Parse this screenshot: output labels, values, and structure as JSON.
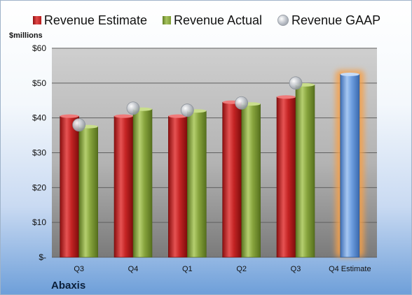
{
  "chart_data": {
    "type": "bar",
    "ylabel": "$millions",
    "ylim": [
      0,
      60
    ],
    "yticks": [
      {
        "value": 0,
        "label": "$-"
      },
      {
        "value": 10,
        "label": "$10"
      },
      {
        "value": 20,
        "label": "$20"
      },
      {
        "value": 30,
        "label": "$30"
      },
      {
        "value": 40,
        "label": "$40"
      },
      {
        "value": 50,
        "label": "$50"
      },
      {
        "value": 60,
        "label": "$60"
      }
    ],
    "categories": [
      "Q3",
      "Q4",
      "Q1",
      "Q2",
      "Q3",
      "Q4 Estimate"
    ],
    "series": [
      {
        "name": "Revenue Estimate",
        "kind": "bar",
        "color": "#c8282a",
        "values": [
          40.5,
          40.5,
          40.5,
          44.5,
          46.0,
          52.5
        ]
      },
      {
        "name": "Revenue Actual",
        "kind": "bar",
        "color": "#8fae4a",
        "values": [
          37.5,
          42.5,
          42.0,
          44.0,
          49.5,
          null
        ]
      },
      {
        "name": "Revenue GAAP",
        "kind": "marker",
        "color": "#b8bcc4",
        "values": [
          38.0,
          42.8,
          42.2,
          44.3,
          50.0,
          null
        ]
      }
    ],
    "highlight": {
      "category_index": 5,
      "color": "#6a9de0",
      "glow": "#f6a04a"
    },
    "legend_position": "top",
    "grid": true
  },
  "labels": {
    "unit": "$millions",
    "company": "Abaxis"
  },
  "legend": [
    {
      "label": "Revenue Estimate",
      "icon": "red-square"
    },
    {
      "label": "Revenue Actual",
      "icon": "green-square"
    },
    {
      "label": "Revenue GAAP",
      "icon": "gray-circle"
    }
  ]
}
